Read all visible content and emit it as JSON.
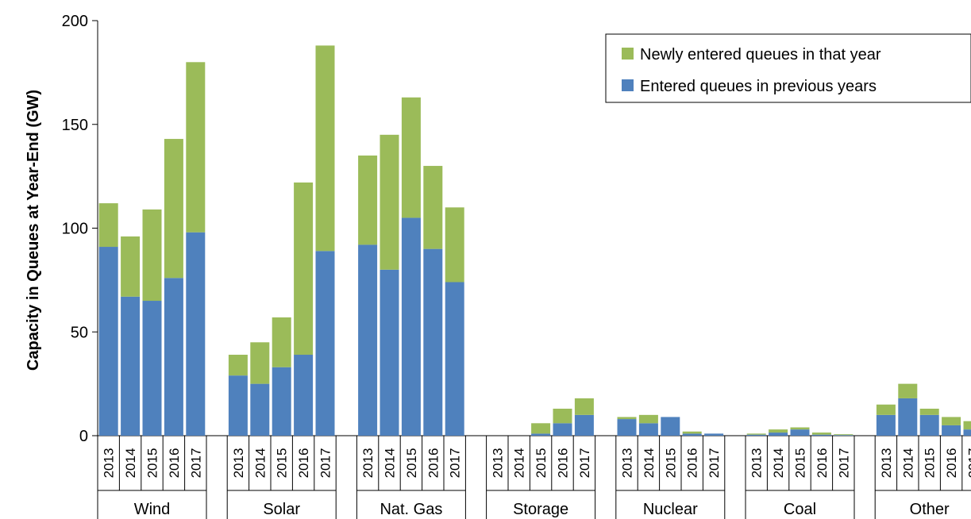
{
  "colors": {
    "new": "#9BBB59",
    "previous": "#4F81BD"
  },
  "chart_data": {
    "type": "bar",
    "stacked": true,
    "title": "",
    "xlabel": "",
    "ylabel": "Capacity in Queues at Year-End (GW)",
    "ylim": [
      0,
      200
    ],
    "yticks": [
      0,
      50,
      100,
      150,
      200
    ],
    "grid": false,
    "legend_position": "top-right",
    "years": [
      "2013",
      "2014",
      "2015",
      "2016",
      "2017"
    ],
    "groups": [
      {
        "name": "Wind",
        "previous": [
          91,
          67,
          65,
          76,
          98
        ],
        "total": [
          112,
          96,
          109,
          143,
          180
        ]
      },
      {
        "name": "Solar",
        "previous": [
          29,
          25,
          33,
          39,
          89
        ],
        "total": [
          39,
          45,
          57,
          122,
          188
        ]
      },
      {
        "name": "Nat. Gas",
        "previous": [
          92,
          80,
          105,
          90,
          74
        ],
        "total": [
          135,
          145,
          163,
          130,
          110
        ]
      },
      {
        "name": "Storage",
        "previous": [
          0,
          0,
          1,
          6,
          10
        ],
        "total": [
          0,
          0,
          6,
          13,
          18
        ]
      },
      {
        "name": "Nuclear",
        "previous": [
          8,
          6,
          9,
          1,
          1
        ],
        "total": [
          9,
          10,
          9,
          2,
          1
        ]
      },
      {
        "name": "Coal",
        "previous": [
          0.5,
          1.5,
          3,
          0.5,
          0.3
        ],
        "total": [
          1,
          3,
          4,
          1.5,
          0.7
        ]
      },
      {
        "name": "Other",
        "previous": [
          10,
          18,
          10,
          5,
          3
        ],
        "total": [
          15,
          25,
          13,
          9,
          7
        ]
      }
    ],
    "series": [
      {
        "key": "new",
        "name": "Newly entered queues in that year"
      },
      {
        "key": "previous",
        "name": "Entered queues in previous years"
      }
    ]
  }
}
